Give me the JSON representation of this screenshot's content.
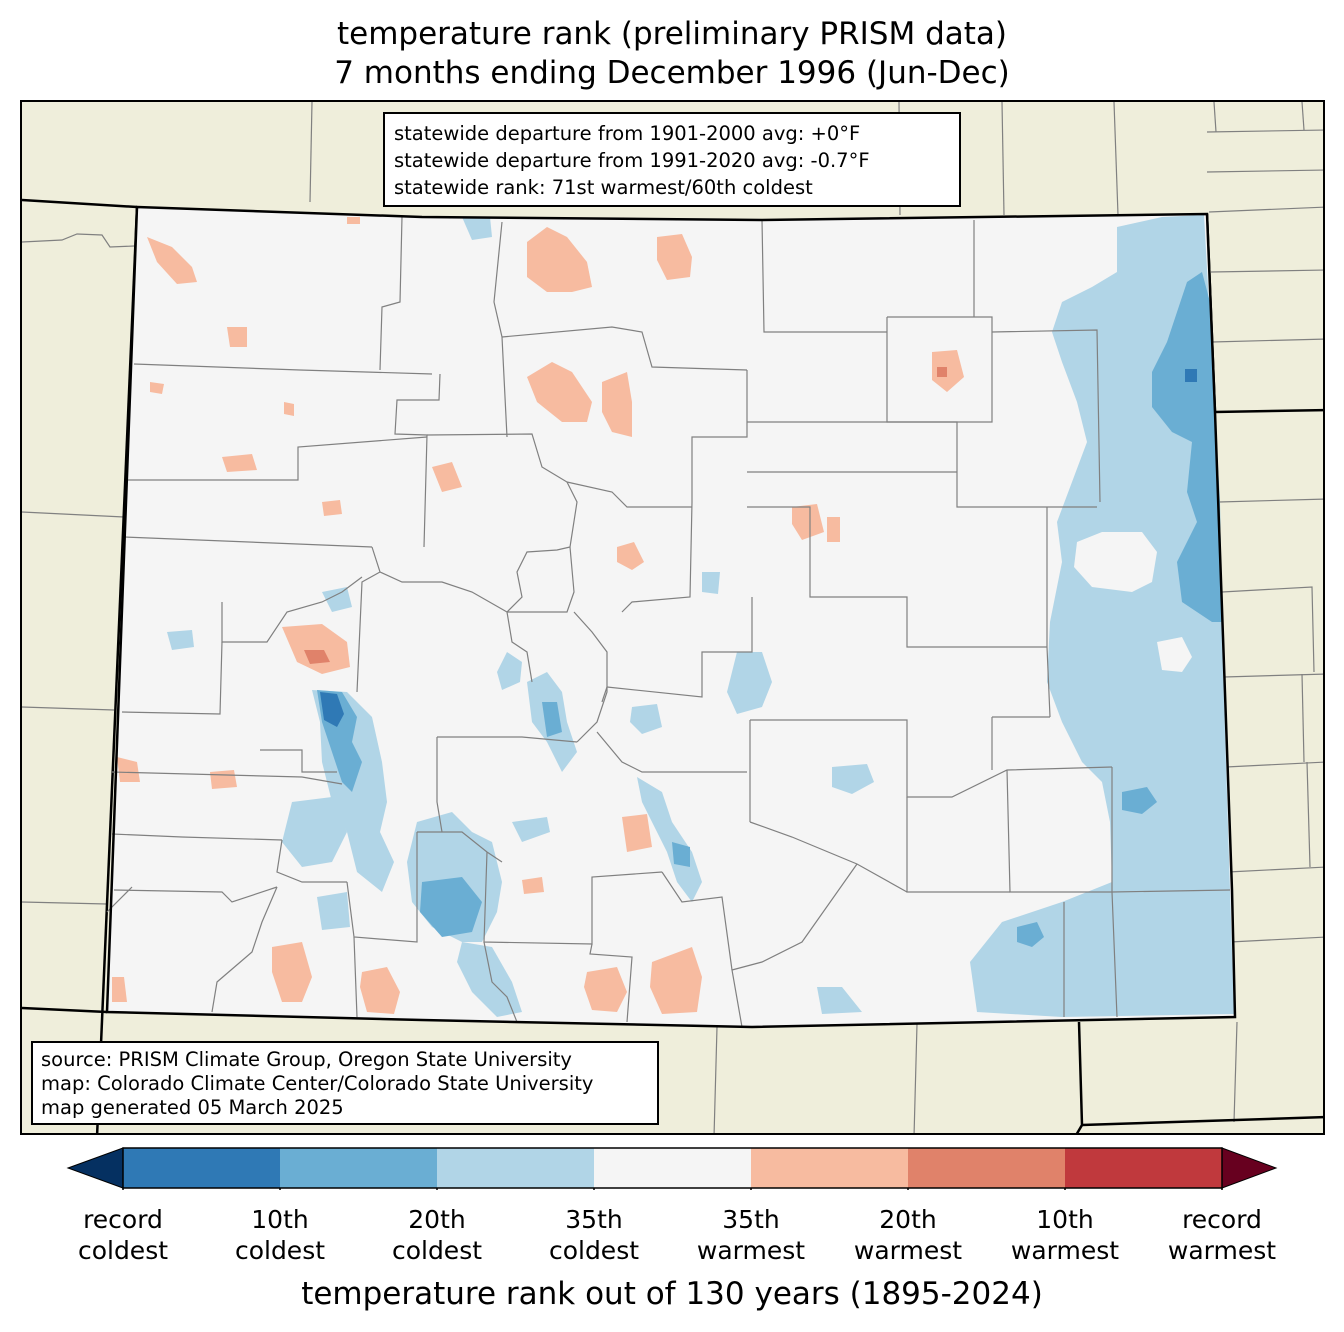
{
  "title": {
    "line1": "temperature rank (preliminary PRISM data)",
    "line2": "7 months ending December 1996 (Jun-Dec)"
  },
  "info_box": {
    "line1": "statewide departure from 1901-2000 avg: +0°F",
    "line2": "statewide departure from 1991-2020 avg: -0.7°F",
    "line3": "statewide rank: 71st warmest/60th coldest"
  },
  "source_box": {
    "line1": "source: PRISM Climate Group, Oregon State University",
    "line2": "map: Colorado Climate Center/Colorado State University",
    "line3": "map generated 05 March 2025"
  },
  "colorbar": {
    "label": "temperature rank out of 130 years (1895-2024)",
    "colors": {
      "record_coldest": "#053061",
      "coldest_10th": "#2f79b5",
      "coldest_20th": "#6aaed3",
      "coldest_35th": "#b1d5e7",
      "neutral": "#f5f5f5",
      "warmest_35th": "#f7bba0",
      "warmest_20th": "#e0826a",
      "warmest_10th": "#c0393d",
      "record_warmest": "#67001f"
    },
    "ticks": [
      {
        "line1": "record",
        "line2": "coldest"
      },
      {
        "line1": "10th",
        "line2": "coldest"
      },
      {
        "line1": "20th",
        "line2": "coldest"
      },
      {
        "line1": "35th",
        "line2": "coldest"
      },
      {
        "line1": "35th",
        "line2": "warmest"
      },
      {
        "line1": "20th",
        "line2": "warmest"
      },
      {
        "line1": "10th",
        "line2": "warmest"
      },
      {
        "line1": "record",
        "line2": "warmest"
      }
    ]
  },
  "map": {
    "background_color": "#efeedb",
    "state_fill": "#f5f5f5",
    "state_border_color": "#000000",
    "county_border_color": "#808080"
  }
}
